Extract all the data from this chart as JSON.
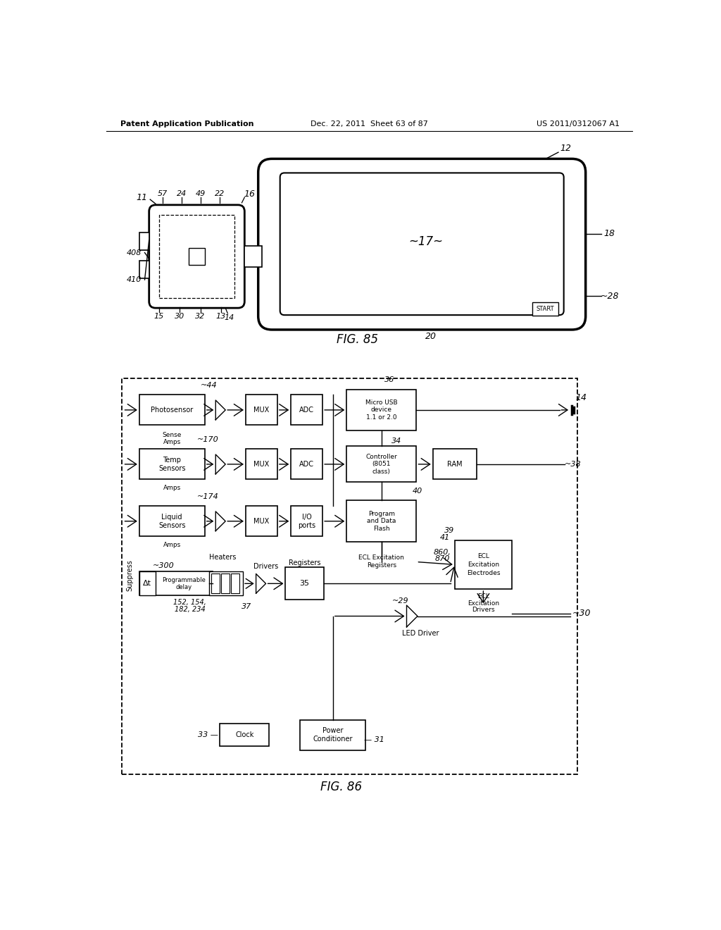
{
  "bg_color": "#ffffff",
  "header_left": "Patent Application Publication",
  "header_mid": "Dec. 22, 2011  Sheet 63 of 87",
  "header_right": "US 2011/0312067 A1",
  "fig85_caption": "FIG. 85",
  "fig86_caption": "FIG. 86"
}
